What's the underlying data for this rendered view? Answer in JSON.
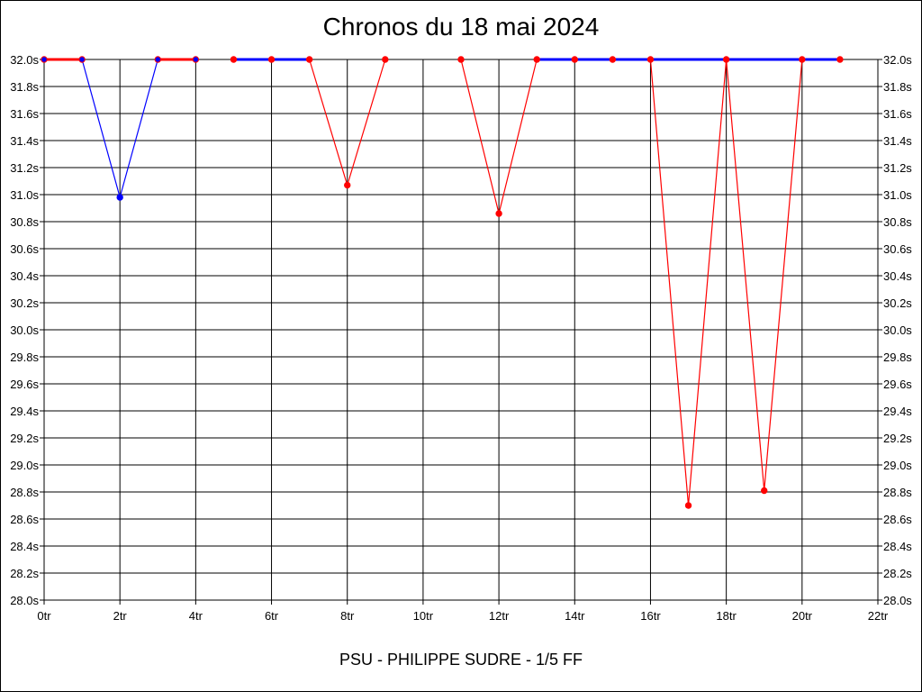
{
  "chart_data": {
    "type": "line",
    "title": "Chronos du 18 mai 2024",
    "footer": "PSU - PHILIPPE SUDRE - 1/5 FF",
    "xlim": [
      0,
      22
    ],
    "ylim": [
      28.0,
      32.0
    ],
    "grid": true,
    "x_ticks": [
      "0tr",
      "2tr",
      "4tr",
      "6tr",
      "8tr",
      "10tr",
      "12tr",
      "14tr",
      "16tr",
      "18tr",
      "20tr",
      "22tr"
    ],
    "y_ticks": [
      "28.0s",
      "28.2s",
      "28.4s",
      "28.6s",
      "28.8s",
      "29.0s",
      "29.2s",
      "29.4s",
      "29.6s",
      "29.8s",
      "30.0s",
      "30.2s",
      "30.4s",
      "30.6s",
      "30.8s",
      "31.0s",
      "31.2s",
      "31.4s",
      "31.6s",
      "31.8s",
      "32.0s"
    ],
    "colors": {
      "red": "#ff0000",
      "blue": "#0000ff",
      "grid": "#000000"
    },
    "segments": [
      {
        "x": [
          0,
          1
        ],
        "y": [
          32.0,
          32.0
        ],
        "color": "red",
        "style": "thick"
      },
      {
        "x": [
          1,
          2,
          3
        ],
        "y": [
          32.0,
          30.98,
          32.0
        ],
        "color": "blue",
        "style": "thin"
      },
      {
        "x": [
          3,
          4
        ],
        "y": [
          32.0,
          32.0
        ],
        "color": "red",
        "style": "thick"
      },
      {
        "x": [
          5,
          6,
          7
        ],
        "y": [
          32.0,
          32.0,
          32.0
        ],
        "color": "blue",
        "style": "thick"
      },
      {
        "x": [
          7,
          8,
          9
        ],
        "y": [
          32.0,
          31.07,
          32.0
        ],
        "color": "red",
        "style": "thin"
      },
      {
        "x": [
          11,
          12,
          13
        ],
        "y": [
          32.0,
          30.86,
          32.0
        ],
        "color": "red",
        "style": "thin"
      },
      {
        "x": [
          13,
          14,
          15,
          16,
          17,
          18,
          19,
          20,
          21
        ],
        "y": [
          32.0,
          32.0,
          32.0,
          32.0,
          32.0,
          32.0,
          32.0,
          32.0,
          32.0
        ],
        "color": "blue",
        "style": "thick"
      },
      {
        "x": [
          16,
          17,
          18,
          19,
          20
        ],
        "y": [
          32.0,
          28.7,
          32.0,
          28.81,
          32.0
        ],
        "color": "red",
        "style": "thin"
      }
    ],
    "points": [
      {
        "x": 0,
        "y": 32.0,
        "fill": "blue",
        "stroke": "red"
      },
      {
        "x": 1,
        "y": 32.0,
        "fill": "blue",
        "stroke": "red"
      },
      {
        "x": 2,
        "y": 30.98,
        "fill": "blue",
        "stroke": "blue"
      },
      {
        "x": 3,
        "y": 32.0,
        "fill": "blue",
        "stroke": "red"
      },
      {
        "x": 4,
        "y": 32.0,
        "fill": "blue",
        "stroke": "red"
      },
      {
        "x": 5,
        "y": 32.0,
        "fill": "red",
        "stroke": "red"
      },
      {
        "x": 6,
        "y": 32.0,
        "fill": "red",
        "stroke": "red"
      },
      {
        "x": 7,
        "y": 32.0,
        "fill": "red",
        "stroke": "red"
      },
      {
        "x": 8,
        "y": 31.07,
        "fill": "red",
        "stroke": "red"
      },
      {
        "x": 9,
        "y": 32.0,
        "fill": "red",
        "stroke": "red"
      },
      {
        "x": 11,
        "y": 32.0,
        "fill": "red",
        "stroke": "red"
      },
      {
        "x": 12,
        "y": 30.86,
        "fill": "red",
        "stroke": "red"
      },
      {
        "x": 13,
        "y": 32.0,
        "fill": "red",
        "stroke": "red"
      },
      {
        "x": 14,
        "y": 32.0,
        "fill": "red",
        "stroke": "red"
      },
      {
        "x": 15,
        "y": 32.0,
        "fill": "red",
        "stroke": "red"
      },
      {
        "x": 16,
        "y": 32.0,
        "fill": "red",
        "stroke": "red"
      },
      {
        "x": 17,
        "y": 28.7,
        "fill": "red",
        "stroke": "red"
      },
      {
        "x": 18,
        "y": 32.0,
        "fill": "red",
        "stroke": "red"
      },
      {
        "x": 19,
        "y": 28.81,
        "fill": "red",
        "stroke": "red"
      },
      {
        "x": 20,
        "y": 32.0,
        "fill": "red",
        "stroke": "red"
      },
      {
        "x": 21,
        "y": 32.0,
        "fill": "red",
        "stroke": "red"
      }
    ]
  }
}
